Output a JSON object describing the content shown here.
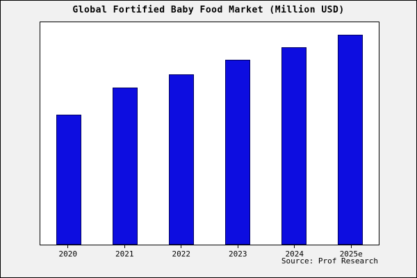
{
  "chart_data": {
    "type": "bar",
    "title": "Global Fortified Baby Food Market (Million USD)",
    "categories": [
      "2020",
      "2021",
      "2022",
      "2023",
      "2024",
      "2025e"
    ],
    "values": [
      62,
      75,
      81,
      88,
      94,
      100
    ],
    "xlabel": "",
    "ylabel": "",
    "ylim": [
      0,
      106
    ],
    "grid": false,
    "legend": false,
    "bar_color": "#0d0de0",
    "bar_border_color": "#000060"
  },
  "source": {
    "label": "Source: Prof Research"
  }
}
